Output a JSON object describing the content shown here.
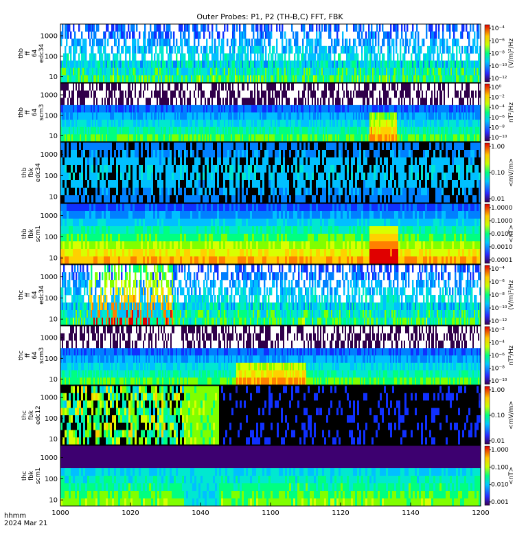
{
  "chart_data": {
    "type": "heatmap",
    "title": "Outer Probes: P1, P2 (TH-B,C) FFT, FBK",
    "x_axis": {
      "range": [
        1000,
        1200
      ],
      "ticks": [
        "1000",
        "1020",
        "1040",
        "1100",
        "1120",
        "1140",
        "1200"
      ],
      "label_lines": [
        "hhmm",
        "2024 Mar 21"
      ]
    },
    "y_ticks": [
      "10",
      "100",
      "1000"
    ],
    "y_scale": "log",
    "panels": [
      {
        "ylabel": [
          "thb",
          "ff",
          "64",
          "edc34"
        ],
        "colorbar_label": "(V/m)²/Hz",
        "colorbar_ticks": [
          "10⁻¹²",
          "10⁻¹⁰",
          "10⁻⁸",
          "10⁻⁶",
          "10⁻⁴"
        ],
        "style": "fft_e"
      },
      {
        "ylabel": [
          "thb",
          "ff",
          "64",
          "scm3"
        ],
        "colorbar_label": "nT²/Hz",
        "colorbar_ticks": [
          "10⁻¹⁰",
          "10⁻⁸",
          "10⁻⁶",
          "10⁻⁴",
          "10⁻²",
          "10⁰"
        ],
        "style": "fft_b"
      },
      {
        "ylabel": [
          "thb",
          "fbk",
          "edc34"
        ],
        "colorbar_label": "<mV/m>",
        "colorbar_ticks": [
          "0.01",
          "0.10",
          "1.00"
        ],
        "style": "fbk_e"
      },
      {
        "ylabel": [
          "thb",
          "fbk",
          "scm1"
        ],
        "colorbar_label": "<nT>",
        "colorbar_ticks": [
          "0.0001",
          "0.0010",
          "0.0100",
          "0.1000",
          "1.0000"
        ],
        "style": "fbk_b"
      },
      {
        "ylabel": [
          "thc",
          "ff",
          "64",
          "edc34"
        ],
        "colorbar_label": "(V/m)²/Hz",
        "colorbar_ticks": [
          "10⁻¹²",
          "10⁻¹⁰",
          "10⁻⁸",
          "10⁻⁶",
          "10⁻⁴"
        ],
        "style": "fft_e2"
      },
      {
        "ylabel": [
          "thc",
          "ff",
          "64",
          "scm3"
        ],
        "colorbar_label": "nT²/Hz",
        "colorbar_ticks": [
          "10⁻¹⁰",
          "10⁻⁸",
          "10⁻⁶",
          "10⁻⁴",
          "10⁻²"
        ],
        "style": "fft_b2"
      },
      {
        "ylabel": [
          "thc",
          "fbk",
          "edc12"
        ],
        "colorbar_label": "<mV/m>",
        "colorbar_ticks": [
          "0.01",
          "0.10",
          "1.00"
        ],
        "style": "fbk_e2"
      },
      {
        "ylabel": [
          "thc",
          "fbk",
          "scm1"
        ],
        "colorbar_label": "<nT>",
        "colorbar_ticks": [
          "0.001",
          "0.010",
          "0.100",
          "1.000"
        ],
        "style": "fbk_b2"
      }
    ]
  }
}
